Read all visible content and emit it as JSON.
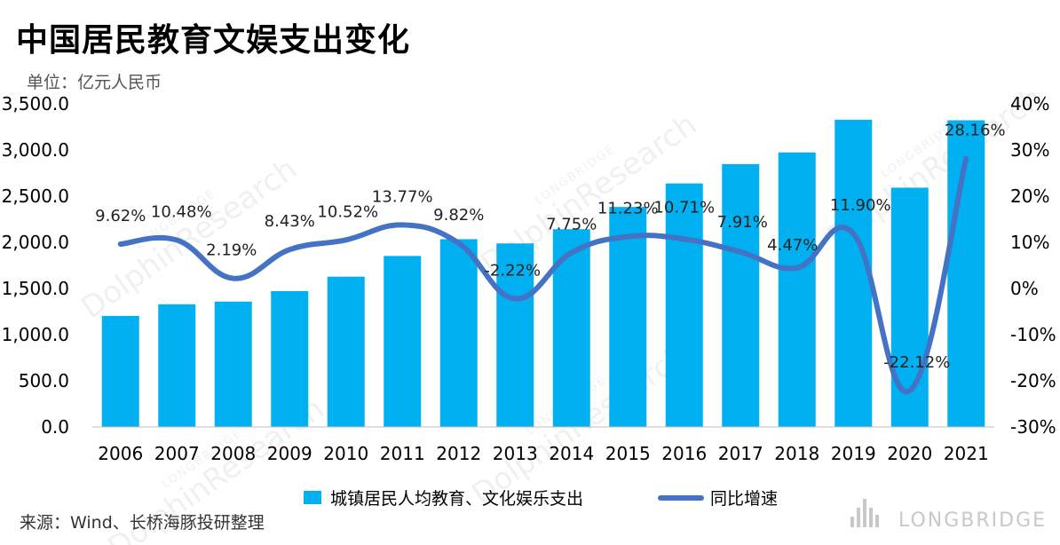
{
  "title": "中国居民教育文娱支出变化",
  "unit": "单位：亿元人民币",
  "source": "来源：Wind、长桥海豚投研整理",
  "watermarks": [
    "LONGBRIDGE",
    "DolphinResearch"
  ],
  "brand": "LONGBRIDGE",
  "colors": {
    "bar": "#00B0F0",
    "line": "#4472C4"
  },
  "chart_data": {
    "type": "bar",
    "categories": [
      "2006",
      "2007",
      "2008",
      "2009",
      "2010",
      "2011",
      "2012",
      "2013",
      "2014",
      "2015",
      "2016",
      "2017",
      "2018",
      "2019",
      "2020",
      "2021"
    ],
    "series": [
      {
        "name": "城镇居民人均教育、文化娱乐支出",
        "type": "bar",
        "axis": "left",
        "values": [
          1203,
          1329,
          1358,
          1472,
          1628,
          1852,
          2034,
          1988,
          2142,
          2383,
          2638,
          2847,
          2974,
          3328,
          2592,
          3322
        ]
      },
      {
        "name": "同比增速",
        "type": "line",
        "axis": "right",
        "values": [
          9.62,
          10.48,
          2.19,
          8.43,
          10.52,
          13.77,
          9.82,
          -2.22,
          7.75,
          11.23,
          10.71,
          7.91,
          4.47,
          11.9,
          -22.12,
          28.16
        ],
        "labels": [
          "9.62%",
          "10.48%",
          "2.19%",
          "8.43%",
          "10.52%",
          "13.77%",
          "9.82%",
          "-2.22%",
          "7.75%",
          "11.23%",
          "10.71%",
          "7.91%",
          "4.47%",
          "11.90%",
          "-22.12%",
          "28.16%"
        ]
      }
    ],
    "y_left": {
      "min": 0,
      "max": 3500,
      "ticks": [
        "0.0",
        "500.0",
        "1,000.0",
        "1,500.0",
        "2,000.0",
        "2,500.0",
        "3,000.0",
        "3,500.0"
      ],
      "tick_values": [
        0,
        500,
        1000,
        1500,
        2000,
        2500,
        3000,
        3500
      ]
    },
    "y_right": {
      "min": -30,
      "max": 40,
      "ticks": [
        "-30%",
        "-20%",
        "-10%",
        "0%",
        "10%",
        "20%",
        "30%",
        "40%"
      ],
      "tick_values": [
        -30,
        -20,
        -10,
        0,
        10,
        20,
        30,
        40
      ]
    },
    "grid": false,
    "legend_position": "bottom"
  }
}
